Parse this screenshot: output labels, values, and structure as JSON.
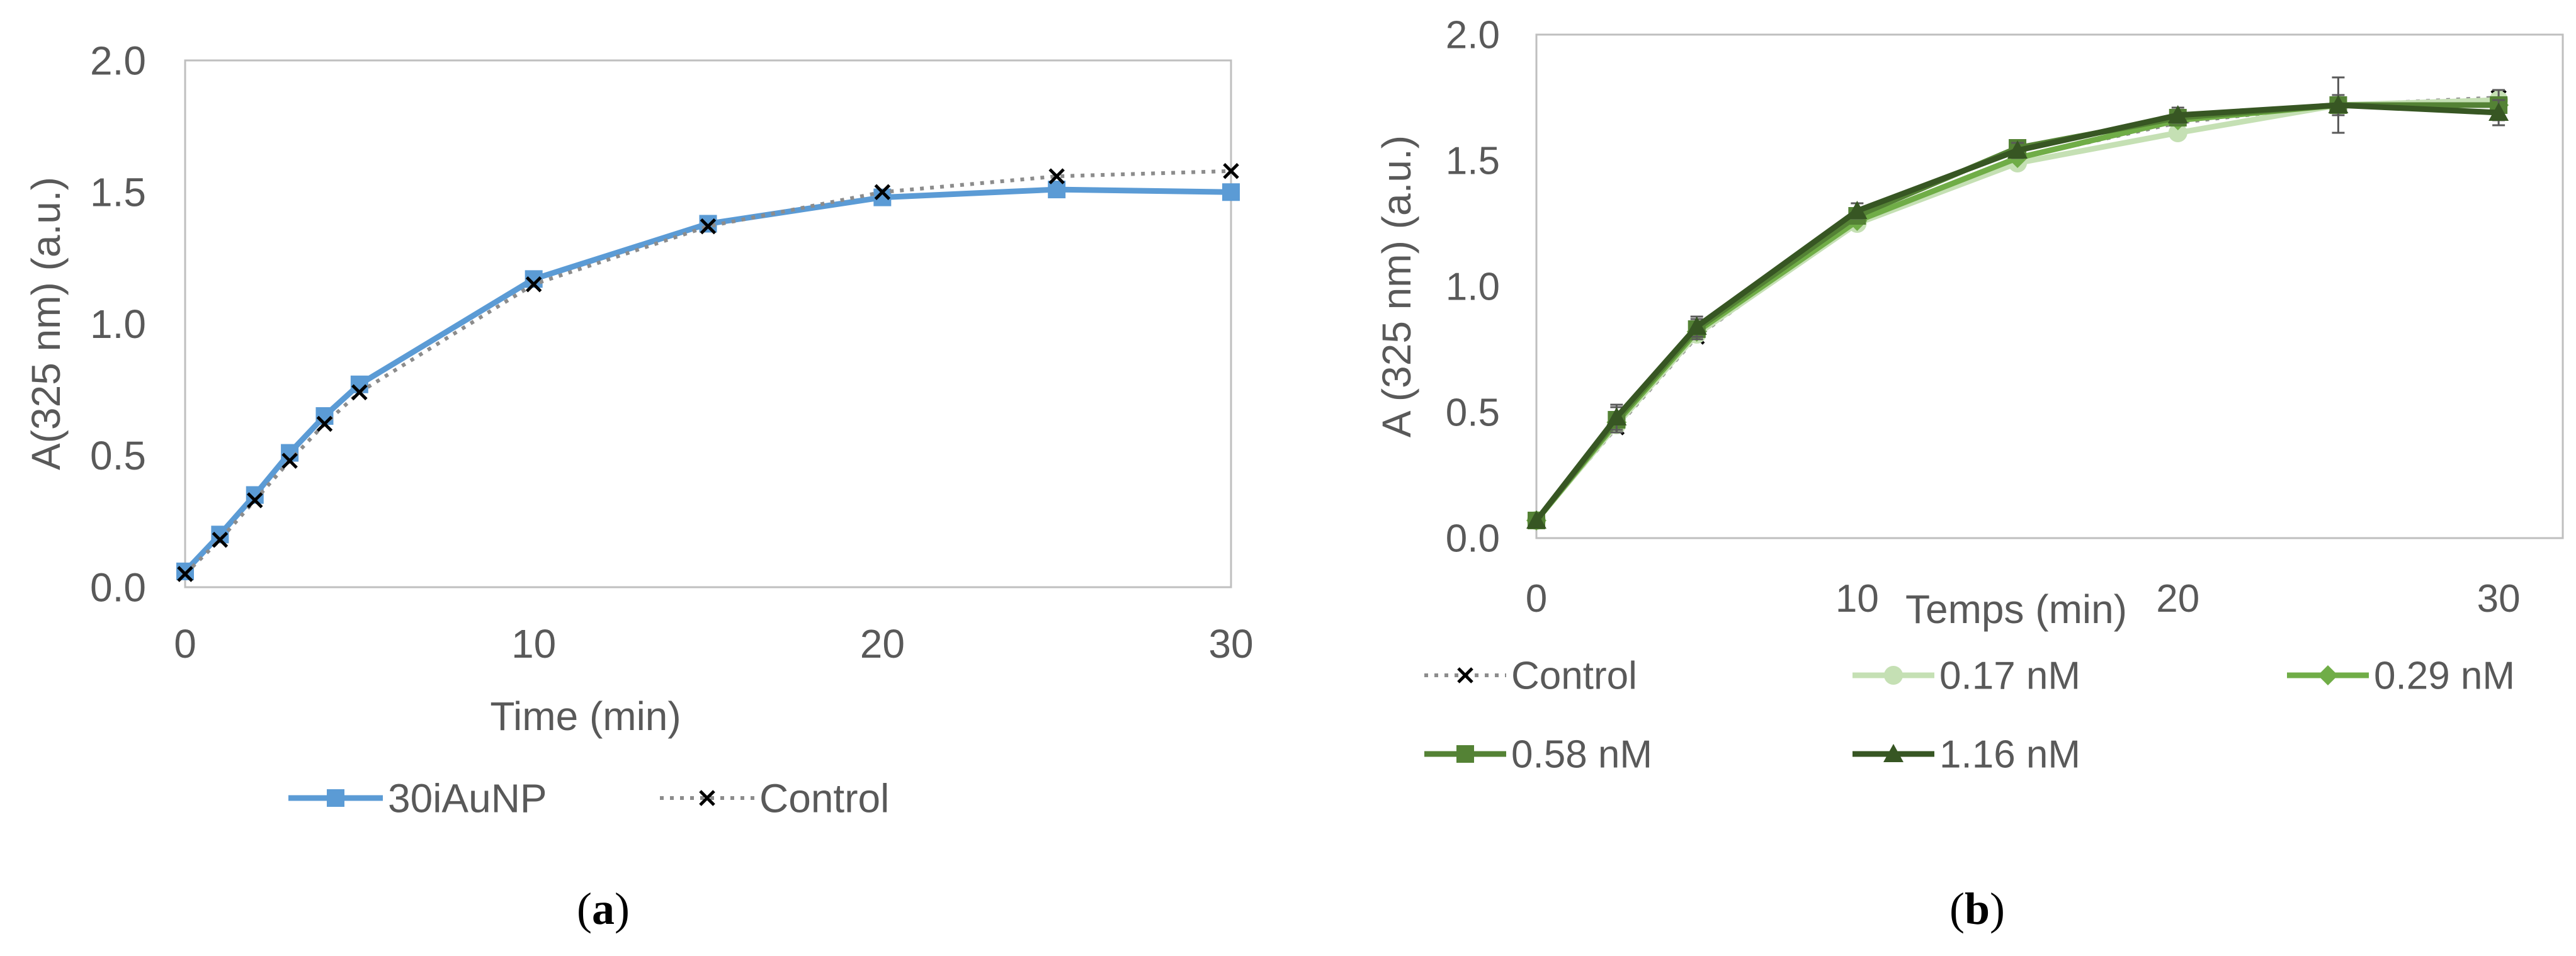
{
  "chart_data": [
    {
      "type": "line",
      "panel_label": "a",
      "xlabel": "Time (min)",
      "ylabel": "A(325 nm) (a.u.)",
      "xlim": [
        0,
        30
      ],
      "ylim": [
        0,
        2.0
      ],
      "xticks": [
        "0",
        "10",
        "20",
        "30"
      ],
      "yticks": [
        "0.0",
        "0.5",
        "1.0",
        "1.5",
        "2.0"
      ],
      "grid": false,
      "legend_position": "bottom",
      "series": [
        {
          "name": "30iAuNP",
          "color": "#5b9bd5",
          "style": "solid",
          "marker": "square",
          "x": [
            0,
            1,
            2,
            3,
            4,
            5,
            10,
            15,
            20,
            25,
            30
          ],
          "y": [
            0.06,
            0.2,
            0.35,
            0.51,
            0.65,
            0.77,
            1.17,
            1.38,
            1.48,
            1.51,
            1.5
          ]
        },
        {
          "name": "Control",
          "color": "#8c8c8c",
          "style": "dotted",
          "marker": "x",
          "x": [
            0,
            1,
            2,
            3,
            4,
            5,
            10,
            15,
            20,
            25,
            30
          ],
          "y": [
            0.05,
            0.18,
            0.33,
            0.48,
            0.62,
            0.74,
            1.15,
            1.37,
            1.5,
            1.56,
            1.58
          ]
        }
      ]
    },
    {
      "type": "line",
      "panel_label": "b",
      "xlabel": "Temps (min)",
      "ylabel": "A (325 nm) (a.u.)",
      "xlim": [
        0,
        32
      ],
      "ylim": [
        0,
        2.0
      ],
      "xticks": [
        "0",
        "10",
        "20",
        "30"
      ],
      "yticks": [
        "0.0",
        "0.5",
        "1.0",
        "1.5",
        "2.0"
      ],
      "grid": false,
      "legend_position": "bottom",
      "series": [
        {
          "name": "Control",
          "color": "#8c8c8c",
          "style": "dotted",
          "marker": "x",
          "x": [
            0,
            2.5,
            5,
            10,
            15,
            20,
            25,
            30
          ],
          "y": [
            0.07,
            0.44,
            0.8,
            1.26,
            1.51,
            1.65,
            1.72,
            1.75
          ]
        },
        {
          "name": "0.17 nM",
          "color": "#c5e0b4",
          "style": "solid",
          "marker": "circle",
          "x": [
            0,
            2.5,
            5,
            10,
            15,
            20,
            25,
            30
          ],
          "y": [
            0.07,
            0.45,
            0.81,
            1.25,
            1.49,
            1.61,
            1.72,
            1.74
          ]
        },
        {
          "name": "0.29 nM",
          "color": "#70ad47",
          "style": "solid",
          "marker": "diamond",
          "x": [
            0,
            2.5,
            5,
            10,
            15,
            20,
            25,
            30
          ],
          "y": [
            0.07,
            0.46,
            0.82,
            1.26,
            1.51,
            1.66,
            1.72,
            1.72
          ]
        },
        {
          "name": "0.58 nM",
          "color": "#548235",
          "style": "solid",
          "marker": "square",
          "x": [
            0,
            2.5,
            5,
            10,
            15,
            20,
            25,
            30
          ],
          "y": [
            0.07,
            0.47,
            0.83,
            1.28,
            1.55,
            1.67,
            1.72,
            1.72
          ],
          "error": [
            0,
            0.05,
            0.04,
            0.03,
            0.03,
            0.03,
            0.11,
            0.06
          ]
        },
        {
          "name": "1.16 nM",
          "color": "#375623",
          "style": "solid",
          "marker": "triangle",
          "x": [
            0,
            2.5,
            5,
            10,
            15,
            20,
            25,
            30
          ],
          "y": [
            0.07,
            0.48,
            0.84,
            1.3,
            1.54,
            1.68,
            1.72,
            1.69
          ],
          "error": [
            0,
            0.05,
            0.04,
            0.03,
            0.03,
            0.03,
            0.04,
            0.05
          ]
        }
      ]
    }
  ]
}
